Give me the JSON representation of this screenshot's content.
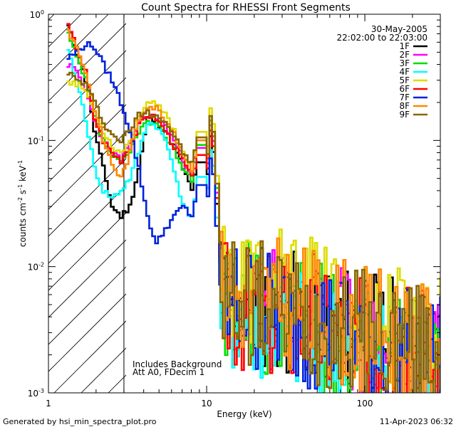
{
  "chart_data": {
    "type": "line",
    "title": "Count Spectra for RHESSI Front Segments",
    "xlabel": "Energy (keV)",
    "ylabel_parts": {
      "pre": "counts cm",
      "exp1": "-2",
      "mid": " s",
      "exp2": "-1",
      "mid2": " keV",
      "exp3": "-1"
    },
    "xscale": "log",
    "yscale": "log",
    "xlim": [
      1,
      300
    ],
    "ylim": [
      0.001,
      1
    ],
    "x_ticks": [
      {
        "v": 1,
        "label": "1"
      },
      {
        "v": 10,
        "label": "10"
      },
      {
        "v": 100,
        "label": "100"
      }
    ],
    "y_ticks": [
      {
        "v": 0.001,
        "base": "10",
        "exp": "-3"
      },
      {
        "v": 0.01,
        "base": "10",
        "exp": "-2"
      },
      {
        "v": 0.1,
        "base": "10",
        "exp": "-1"
      },
      {
        "v": 1,
        "base": "10",
        "exp": "0"
      }
    ],
    "hatch_region_keV": [
      1,
      3
    ],
    "date": "30-May-2005",
    "time_range": "22:02:00 to 22:03:00",
    "annotation_lines": [
      "Includes Background",
      "Att A0, FDecim 1"
    ],
    "footer_left": "Generated by hsi_min_spectra_plot.pro",
    "footer_right": "11-Apr-2023 06:32",
    "series": [
      {
        "name": "1F",
        "color": "#000000",
        "low": [
          0.8,
          0.5,
          0.3,
          0.12,
          0.06,
          0.03,
          0.025,
          0.03,
          0.06,
          0.15,
          0.14,
          0.12,
          0.09,
          0.06,
          0.04,
          0.09
        ],
        "tail": 0.0045,
        "seed": 11
      },
      {
        "name": "2F",
        "color": "#ff00ff",
        "low": [
          0.4,
          0.35,
          0.25,
          0.15,
          0.1,
          0.08,
          0.07,
          0.09,
          0.14,
          0.16,
          0.15,
          0.13,
          0.1,
          0.07,
          0.055,
          0.11
        ],
        "tail": 0.004,
        "seed": 23
      },
      {
        "name": "3F",
        "color": "#00dd00",
        "low": [
          0.7,
          0.45,
          0.3,
          0.15,
          0.1,
          0.075,
          0.065,
          0.08,
          0.12,
          0.14,
          0.13,
          0.11,
          0.085,
          0.06,
          0.05,
          0.12
        ],
        "tail": 0.004,
        "seed": 37
      },
      {
        "name": "4F",
        "color": "#00ffff",
        "low": [
          0.5,
          0.3,
          0.15,
          0.06,
          0.04,
          0.035,
          0.04,
          0.05,
          0.08,
          0.14,
          0.13,
          0.1,
          0.06,
          0.03,
          0.025,
          0.07
        ],
        "tail": 0.003,
        "seed": 41
      },
      {
        "name": "5F",
        "color": "#dddd00",
        "low": [
          0.3,
          0.28,
          0.25,
          0.17,
          0.12,
          0.09,
          0.08,
          0.1,
          0.16,
          0.2,
          0.19,
          0.16,
          0.12,
          0.08,
          0.06,
          0.15
        ],
        "tail": 0.006,
        "seed": 53
      },
      {
        "name": "6F",
        "color": "#ff0000",
        "low": [
          0.8,
          0.55,
          0.35,
          0.15,
          0.1,
          0.08,
          0.07,
          0.09,
          0.13,
          0.16,
          0.15,
          0.12,
          0.09,
          0.07,
          0.05,
          0.1
        ],
        "tail": 0.004,
        "seed": 67
      },
      {
        "name": "7F",
        "color": "#0022dd",
        "low": [
          0.45,
          0.5,
          0.58,
          0.55,
          0.4,
          0.3,
          0.2,
          0.12,
          0.06,
          0.025,
          0.015,
          0.02,
          0.025,
          0.03,
          0.025,
          0.06
        ],
        "tail": 0.004,
        "seed": 79
      },
      {
        "name": "8F",
        "color": "#ff8800",
        "low": [
          0.75,
          0.55,
          0.35,
          0.18,
          0.1,
          0.065,
          0.05,
          0.08,
          0.15,
          0.19,
          0.18,
          0.15,
          0.11,
          0.08,
          0.06,
          0.13
        ],
        "tail": 0.005,
        "seed": 83
      },
      {
        "name": "9F",
        "color": "#886600",
        "low": [
          0.35,
          0.3,
          0.28,
          0.2,
          0.14,
          0.11,
          0.1,
          0.12,
          0.16,
          0.17,
          0.16,
          0.14,
          0.11,
          0.08,
          0.065,
          0.13
        ],
        "tail": 0.0045,
        "seed": 97
      }
    ]
  }
}
